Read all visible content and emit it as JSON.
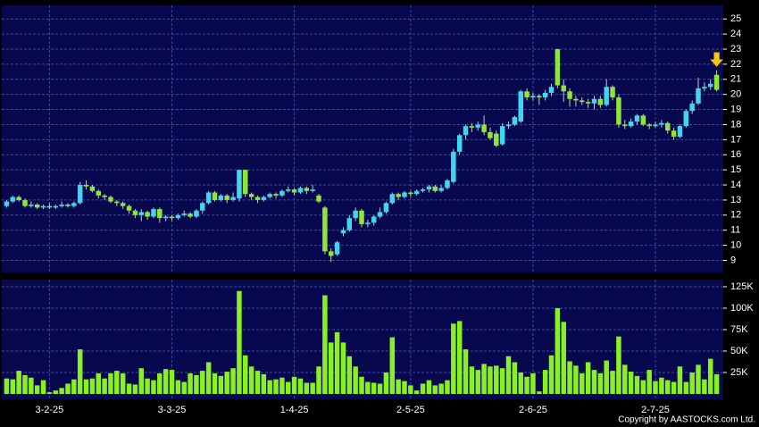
{
  "chart_data": {
    "type": "candlestick",
    "categories": [
      null,
      null,
      null,
      null,
      null,
      null,
      null,
      "3-2-25",
      null,
      null,
      null,
      null,
      null,
      null,
      null,
      null,
      null,
      null,
      null,
      null,
      null,
      null,
      null,
      null,
      null,
      null,
      null,
      "3-3-25",
      null,
      null,
      null,
      null,
      null,
      null,
      null,
      null,
      null,
      null,
      null,
      null,
      null,
      null,
      null,
      null,
      null,
      null,
      null,
      "1-4-25",
      null,
      null,
      null,
      null,
      null,
      null,
      null,
      null,
      null,
      null,
      null,
      null,
      null,
      null,
      null,
      null,
      null,
      null,
      "2-5-25",
      null,
      null,
      null,
      null,
      null,
      null,
      null,
      null,
      null,
      null,
      null,
      null,
      null,
      null,
      null,
      null,
      null,
      null,
      null,
      "2-6-25",
      null,
      null,
      null,
      null,
      null,
      null,
      null,
      null,
      null,
      null,
      null,
      null,
      null,
      null,
      null,
      null,
      null,
      null,
      null,
      "2-7-25",
      null,
      null,
      null,
      null,
      null,
      null,
      null,
      null,
      null,
      null
    ],
    "open": [
      12.6,
      12.9,
      13.2,
      13.0,
      12.6,
      12.7,
      12.5,
      12.6,
      12.5,
      12.6,
      12.7,
      12.6,
      12.8,
      14.0,
      13.9,
      13.6,
      13.3,
      13.2,
      12.9,
      12.8,
      12.6,
      12.3,
      12.0,
      12.2,
      11.9,
      12.4,
      11.8,
      11.9,
      11.8,
      12.0,
      12.1,
      11.9,
      12.3,
      12.8,
      13.5,
      13.0,
      13.3,
      13.0,
      13.1,
      15.0,
      13.4,
      13.2,
      13.0,
      13.2,
      13.4,
      13.3,
      13.6,
      13.7,
      13.5,
      13.8,
      13.6,
      13.3,
      12.5,
      9.6,
      9.4,
      10.8,
      11.0,
      11.8,
      12.3,
      11.4,
      11.5,
      11.9,
      12.2,
      12.8,
      13.4,
      13.2,
      13.5,
      13.4,
      13.6,
      13.7,
      13.9,
      13.6,
      13.8,
      14.2,
      16.2,
      17.3,
      17.9,
      17.8,
      18.0,
      17.5,
      17.4,
      16.7,
      17.9,
      18.0,
      18.2,
      20.2,
      19.8,
      19.9,
      19.8,
      20.1,
      23.0,
      20.6,
      20.2,
      19.7,
      19.6,
      19.5,
      19.4,
      19.7,
      19.3,
      20.5,
      19.8,
      18.0,
      17.9,
      18.2,
      18.6,
      18.0,
      17.9,
      18.0,
      18.1,
      17.6,
      17.2,
      17.9,
      18.9,
      19.4,
      20.4,
      20.5,
      21.3
    ],
    "high": [
      13.0,
      13.3,
      13.3,
      13.1,
      12.9,
      12.8,
      12.7,
      12.8,
      12.7,
      12.9,
      12.8,
      12.9,
      14.2,
      14.3,
      14.0,
      13.7,
      13.4,
      13.3,
      13.0,
      12.9,
      12.7,
      12.4,
      12.4,
      12.3,
      12.5,
      12.5,
      12.0,
      12.0,
      12.1,
      12.3,
      12.2,
      12.4,
      12.9,
      13.6,
      13.6,
      13.4,
      13.4,
      13.5,
      15.0,
      15.0,
      13.5,
      13.3,
      13.3,
      13.5,
      13.5,
      13.7,
      13.9,
      13.8,
      13.9,
      13.9,
      14.0,
      13.4,
      12.6,
      9.8,
      10.3,
      11.2,
      12.0,
      12.5,
      12.4,
      11.7,
      12.0,
      12.5,
      12.9,
      13.5,
      13.5,
      13.6,
      13.6,
      13.7,
      13.8,
      14.0,
      14.0,
      14.0,
      14.4,
      16.4,
      17.4,
      18.0,
      18.1,
      18.2,
      18.6,
      17.8,
      17.6,
      18.1,
      18.2,
      18.6,
      20.3,
      20.4,
      20.1,
      20.0,
      20.3,
      20.7,
      23.0,
      21.0,
      20.4,
      19.9,
      19.8,
      19.7,
      19.9,
      19.9,
      21.0,
      20.6,
      20.0,
      18.3,
      18.4,
      18.7,
      18.7,
      18.1,
      18.2,
      18.3,
      18.2,
      17.8,
      18.0,
      19.0,
      19.6,
      21.1,
      20.8,
      21.0,
      21.6
    ],
    "low": [
      12.5,
      12.8,
      12.9,
      12.5,
      12.5,
      12.4,
      12.4,
      12.4,
      12.4,
      12.5,
      12.5,
      12.5,
      12.7,
      13.7,
      13.5,
      13.1,
      13.0,
      12.8,
      12.6,
      12.4,
      12.1,
      11.8,
      11.6,
      11.7,
      11.8,
      11.5,
      11.6,
      11.6,
      11.7,
      11.9,
      11.8,
      11.8,
      12.1,
      12.7,
      12.9,
      12.9,
      12.8,
      12.9,
      12.9,
      13.2,
      13.0,
      12.8,
      12.9,
      13.1,
      13.1,
      13.2,
      13.5,
      13.3,
      13.4,
      13.4,
      13.5,
      12.8,
      9.4,
      8.9,
      9.3,
      10.6,
      10.9,
      11.6,
      11.2,
      11.2,
      11.3,
      11.8,
      12.1,
      12.7,
      13.0,
      13.1,
      13.2,
      13.3,
      13.5,
      13.5,
      13.5,
      13.5,
      13.7,
      14.1,
      16.0,
      17.0,
      17.5,
      17.6,
      17.3,
      17.0,
      16.5,
      16.6,
      17.7,
      17.9,
      18.1,
      19.6,
      19.6,
      19.3,
      19.6,
      19.9,
      20.4,
      19.5,
      19.2,
      19.2,
      19.3,
      19.1,
      19.0,
      19.1,
      19.2,
      19.6,
      17.8,
      17.7,
      17.8,
      18.0,
      17.9,
      17.7,
      17.8,
      17.8,
      17.4,
      17.0,
      17.1,
      17.8,
      18.7,
      19.3,
      20.2,
      20.3,
      20.2
    ],
    "close": [
      12.9,
      13.2,
      13.0,
      12.6,
      12.7,
      12.5,
      12.6,
      12.5,
      12.6,
      12.7,
      12.6,
      12.8,
      14.0,
      13.9,
      13.6,
      13.3,
      13.2,
      12.9,
      12.8,
      12.6,
      12.3,
      12.0,
      12.2,
      11.9,
      12.4,
      11.8,
      11.9,
      11.8,
      12.0,
      12.1,
      11.9,
      12.3,
      12.8,
      13.5,
      13.0,
      13.3,
      13.0,
      13.2,
      15.0,
      13.4,
      13.2,
      13.0,
      13.2,
      13.4,
      13.3,
      13.6,
      13.7,
      13.5,
      13.8,
      13.6,
      13.7,
      12.9,
      9.6,
      9.3,
      10.2,
      11.0,
      11.8,
      12.3,
      11.4,
      11.5,
      11.9,
      12.2,
      12.8,
      13.4,
      13.2,
      13.5,
      13.4,
      13.6,
      13.7,
      13.9,
      13.6,
      13.8,
      14.3,
      16.2,
      17.3,
      17.9,
      17.8,
      18.0,
      17.5,
      17.1,
      16.6,
      17.9,
      18.0,
      18.5,
      20.2,
      19.8,
      19.9,
      19.8,
      20.1,
      20.5,
      20.6,
      20.2,
      19.7,
      19.6,
      19.5,
      19.4,
      19.7,
      19.3,
      20.5,
      19.8,
      18.0,
      17.9,
      18.2,
      18.6,
      18.0,
      17.9,
      18.0,
      18.1,
      17.6,
      17.2,
      17.9,
      18.9,
      19.4,
      20.4,
      20.5,
      20.7,
      20.3
    ],
    "up_color": "#3fd6f2",
    "down_color": "#8ee63a",
    "ylim": [
      8.2,
      25.9
    ],
    "yticks": [
      9,
      10,
      11,
      12,
      13,
      14,
      15,
      16,
      17,
      18,
      19,
      20,
      21,
      22,
      23,
      24,
      25
    ],
    "grid": true,
    "volume": {
      "type": "bar",
      "color": "#88f024",
      "values": [
        18000,
        17000,
        27000,
        22000,
        19000,
        10000,
        16000,
        2000,
        4000,
        7000,
        12000,
        17000,
        52000,
        17000,
        18000,
        24000,
        18000,
        24000,
        27000,
        24000,
        12000,
        11000,
        30000,
        18000,
        16000,
        24000,
        29000,
        28000,
        16000,
        14000,
        24000,
        22000,
        27000,
        37000,
        24000,
        21000,
        26000,
        30000,
        120000,
        45000,
        32000,
        27000,
        23000,
        16000,
        17000,
        19000,
        14000,
        20000,
        18000,
        13000,
        13000,
        32000,
        115000,
        60000,
        72000,
        60000,
        44000,
        32000,
        20000,
        14000,
        13000,
        12000,
        25000,
        66000,
        17000,
        15000,
        10000,
        4000,
        12000,
        16000,
        10000,
        12000,
        16000,
        82000,
        85000,
        52000,
        32000,
        28000,
        35000,
        32000,
        33000,
        30000,
        44000,
        37000,
        25000,
        20000,
        24000,
        3000,
        28000,
        45000,
        100000,
        84000,
        38000,
        33000,
        24000,
        37000,
        28000,
        24000,
        39000,
        27000,
        67000,
        34000,
        26000,
        21000,
        16000,
        28000,
        15000,
        19000,
        16000,
        14000,
        32000,
        14000,
        25000,
        34000,
        17000,
        41000,
        23000
      ],
      "ylim": [
        -6250,
        133300
      ],
      "yticks": [
        {
          "value": 25000,
          "label": "25K"
        },
        {
          "value": 50000,
          "label": "50K"
        },
        {
          "value": 75000,
          "label": "75K"
        },
        {
          "value": 100000,
          "label": "100K"
        },
        {
          "value": 125000,
          "label": "125K"
        }
      ],
      "grid": true
    },
    "copyright": "Copyright by AASTOCKS.com Ltd."
  }
}
